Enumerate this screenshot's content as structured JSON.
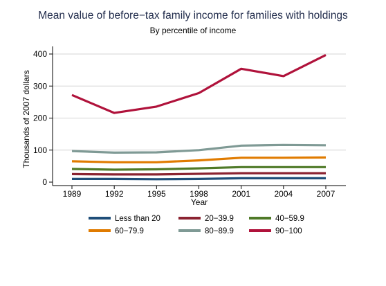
{
  "title": "Mean value of before−tax family income for families with holdings",
  "subtitle": "By percentile of income",
  "chart_data": {
    "type": "line",
    "title": "Mean value of before−tax family income for families with holdings",
    "subtitle": "By percentile of income",
    "xlabel": "Year",
    "ylabel": "Thousands of 2007 dollars",
    "x": [
      1989,
      1992,
      1995,
      1998,
      2001,
      2004,
      2007
    ],
    "x_tick_labels": [
      "1989",
      "1992",
      "1995",
      "1998",
      "2001",
      "2004",
      "2007"
    ],
    "y_ticks": [
      0,
      100,
      200,
      300,
      400
    ],
    "y_tick_labels": [
      "0",
      "100",
      "200",
      "300",
      "400"
    ],
    "ylim": [
      0,
      400
    ],
    "grid": true,
    "legend_position": "bottom",
    "series": [
      {
        "name": "Less than 20",
        "color": "#1f4e79",
        "values": [
          10,
          10,
          9,
          10,
          12,
          12,
          12
        ]
      },
      {
        "name": "20−39.9",
        "color": "#8b2331",
        "values": [
          25,
          24,
          24,
          26,
          28,
          28,
          28
        ]
      },
      {
        "name": "40−59.9",
        "color": "#4f7a28",
        "values": [
          41,
          39,
          40,
          43,
          47,
          47,
          47
        ]
      },
      {
        "name": "60−79.9",
        "color": "#e07b00",
        "values": [
          65,
          62,
          62,
          68,
          76,
          76,
          77
        ]
      },
      {
        "name": "80−89.9",
        "color": "#7f9a95",
        "values": [
          97,
          92,
          93,
          100,
          114,
          116,
          115
        ]
      },
      {
        "name": "90−100",
        "color": "#b0123b",
        "values": [
          272,
          216,
          236,
          278,
          354,
          331,
          397
        ]
      }
    ]
  }
}
